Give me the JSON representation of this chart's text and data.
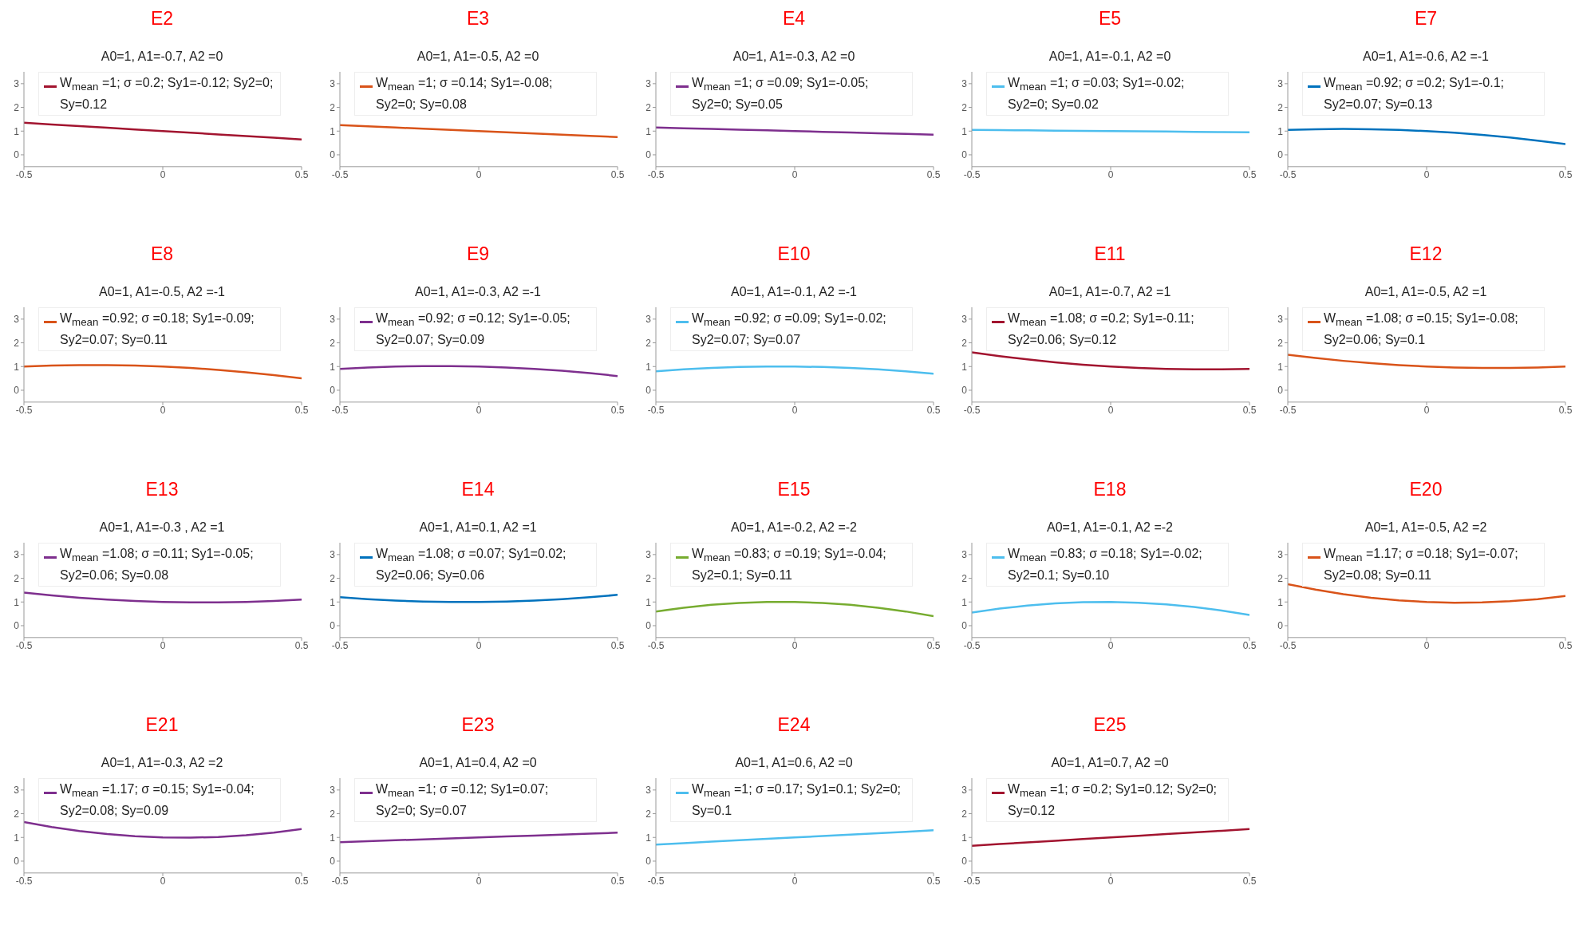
{
  "chart_data": [
    {
      "type": "line",
      "title": "E2",
      "subtitle": "A0=1, A1=-0.7, A2 =0",
      "x": [
        -0.5,
        -0.4,
        -0.3,
        -0.2,
        -0.1,
        0,
        0.1,
        0.2,
        0.3,
        0.4,
        0.5
      ],
      "xlim": [
        -0.5,
        0.5
      ],
      "xticks": [
        -0.5,
        0,
        0.5
      ],
      "ylim": [
        -0.5,
        3.5
      ],
      "yticks": [
        0,
        1,
        2,
        3
      ],
      "legend": "top",
      "series": [
        {
          "name": "W$_{mean}$ =1; σ =0.2; Sy1=-0.12; Sy2=0; Sy=0.12",
          "color": "#a2142f",
          "values": [
            1.35,
            1.28,
            1.21,
            1.14,
            1.07,
            1,
            0.93,
            0.86,
            0.79,
            0.72,
            0.65
          ]
        }
      ]
    },
    {
      "type": "line",
      "title": "E3",
      "subtitle": "A0=1, A1=-0.5, A2 =0",
      "x": [
        -0.5,
        -0.4,
        -0.3,
        -0.2,
        -0.1,
        0,
        0.1,
        0.2,
        0.3,
        0.4,
        0.5
      ],
      "xlim": [
        -0.5,
        0.5
      ],
      "xticks": [
        -0.5,
        0,
        0.5
      ],
      "ylim": [
        -0.5,
        3.5
      ],
      "yticks": [
        0,
        1,
        2,
        3
      ],
      "legend": "top",
      "series": [
        {
          "name": "W$_{mean}$ =1; σ =0.14; Sy1=-0.08; Sy2=0; Sy=0.08",
          "color": "#d95319",
          "values": [
            1.25,
            1.2,
            1.15,
            1.1,
            1.05,
            1,
            0.95,
            0.9,
            0.85,
            0.8,
            0.75
          ]
        }
      ]
    },
    {
      "type": "line",
      "title": "E4",
      "subtitle": "A0=1, A1=-0.3, A2 =0",
      "x": [
        -0.5,
        -0.4,
        -0.3,
        -0.2,
        -0.1,
        0,
        0.1,
        0.2,
        0.3,
        0.4,
        0.5
      ],
      "xlim": [
        -0.5,
        0.5
      ],
      "xticks": [
        -0.5,
        0,
        0.5
      ],
      "ylim": [
        -0.5,
        3.5
      ],
      "yticks": [
        0,
        1,
        2,
        3
      ],
      "legend": "top",
      "series": [
        {
          "name": "W$_{mean}$ =1; σ =0.09; Sy1=-0.05; Sy2=0; Sy=0.05",
          "color": "#7e2f8e",
          "values": [
            1.15,
            1.12,
            1.09,
            1.06,
            1.03,
            1,
            0.97,
            0.94,
            0.91,
            0.88,
            0.85
          ]
        }
      ]
    },
    {
      "type": "line",
      "title": "E5",
      "subtitle": "A0=1, A1=-0.1, A2 =0",
      "x": [
        -0.5,
        -0.4,
        -0.3,
        -0.2,
        -0.1,
        0,
        0.1,
        0.2,
        0.3,
        0.4,
        0.5
      ],
      "xlim": [
        -0.5,
        0.5
      ],
      "xticks": [
        -0.5,
        0,
        0.5
      ],
      "ylim": [
        -0.5,
        3.5
      ],
      "yticks": [
        0,
        1,
        2,
        3
      ],
      "legend": "top",
      "series": [
        {
          "name": "W$_{mean}$ =1; σ =0.03; Sy1=-0.02; Sy2=0; Sy=0.02",
          "color": "#4dbeee",
          "values": [
            1.05,
            1.04,
            1.03,
            1.02,
            1.01,
            1,
            0.99,
            0.98,
            0.97,
            0.96,
            0.95
          ]
        }
      ]
    },
    {
      "type": "line",
      "title": "E7",
      "subtitle": "A0=1, A1=-0.6, A2 =-1",
      "x": [
        -0.5,
        -0.4,
        -0.3,
        -0.2,
        -0.1,
        0,
        0.1,
        0.2,
        0.3,
        0.4,
        0.5
      ],
      "xlim": [
        -0.5,
        0.5
      ],
      "xticks": [
        -0.5,
        0,
        0.5
      ],
      "ylim": [
        -0.5,
        3.5
      ],
      "yticks": [
        0,
        1,
        2,
        3
      ],
      "legend": "top",
      "series": [
        {
          "name": "W$_{mean}$ =0.92; σ =0.2; Sy1=-0.1; Sy2=0.07; Sy=0.13",
          "color": "#0072bd",
          "values": [
            1.05,
            1.08,
            1.09,
            1.08,
            1.05,
            1,
            0.93,
            0.84,
            0.73,
            0.6,
            0.45
          ]
        }
      ]
    },
    {
      "type": "line",
      "title": "E8",
      "subtitle": "A0=1, A1=-0.5, A2 =-1",
      "x": [
        -0.5,
        -0.4,
        -0.3,
        -0.2,
        -0.1,
        0,
        0.1,
        0.2,
        0.3,
        0.4,
        0.5
      ],
      "xlim": [
        -0.5,
        0.5
      ],
      "xticks": [
        -0.5,
        0,
        0.5
      ],
      "ylim": [
        -0.5,
        3.5
      ],
      "yticks": [
        0,
        1,
        2,
        3
      ],
      "legend": "top",
      "series": [
        {
          "name": "W$_{mean}$ =0.92; σ =0.18; Sy1=-0.09; Sy2=0.07; Sy=0.11",
          "color": "#d95319",
          "values": [
            1,
            1.04,
            1.06,
            1.06,
            1.04,
            1,
            0.94,
            0.86,
            0.76,
            0.64,
            0.5
          ]
        }
      ]
    },
    {
      "type": "line",
      "title": "E9",
      "subtitle": "A0=1, A1=-0.3, A2 =-1",
      "x": [
        -0.5,
        -0.4,
        -0.3,
        -0.2,
        -0.1,
        0,
        0.1,
        0.2,
        0.3,
        0.4,
        0.5
      ],
      "xlim": [
        -0.5,
        0.5
      ],
      "xticks": [
        -0.5,
        0,
        0.5
      ],
      "ylim": [
        -0.5,
        3.5
      ],
      "yticks": [
        0,
        1,
        2,
        3
      ],
      "legend": "top",
      "series": [
        {
          "name": "W$_{mean}$ =0.92; σ =0.12; Sy1=-0.05; Sy2=0.07; Sy=0.09",
          "color": "#7e2f8e",
          "values": [
            0.9,
            0.96,
            1,
            1.02,
            1.02,
            1,
            0.96,
            0.9,
            0.82,
            0.72,
            0.6
          ]
        }
      ]
    },
    {
      "type": "line",
      "title": "E10",
      "subtitle": "A0=1, A1=-0.1, A2 =-1",
      "x": [
        -0.5,
        -0.4,
        -0.3,
        -0.2,
        -0.1,
        0,
        0.1,
        0.2,
        0.3,
        0.4,
        0.5
      ],
      "xlim": [
        -0.5,
        0.5
      ],
      "xticks": [
        -0.5,
        0,
        0.5
      ],
      "ylim": [
        -0.5,
        3.5
      ],
      "yticks": [
        0,
        1,
        2,
        3
      ],
      "legend": "top",
      "series": [
        {
          "name": "W$_{mean}$ =0.92; σ =0.09; Sy1=-0.02; Sy2=0.07; Sy=0.07",
          "color": "#4dbeee",
          "values": [
            0.8,
            0.88,
            0.94,
            0.98,
            1,
            1,
            0.98,
            0.94,
            0.88,
            0.8,
            0.7
          ]
        }
      ]
    },
    {
      "type": "line",
      "title": "E11",
      "subtitle": "A0=1, A1=-0.7, A2 =1",
      "x": [
        -0.5,
        -0.4,
        -0.3,
        -0.2,
        -0.1,
        0,
        0.1,
        0.2,
        0.3,
        0.4,
        0.5
      ],
      "xlim": [
        -0.5,
        0.5
      ],
      "xticks": [
        -0.5,
        0,
        0.5
      ],
      "ylim": [
        -0.5,
        3.5
      ],
      "yticks": [
        0,
        1,
        2,
        3
      ],
      "legend": "top",
      "series": [
        {
          "name": "W$_{mean}$ =1.08; σ =0.2; Sy1=-0.11; Sy2=0.06; Sy=0.12",
          "color": "#a2142f",
          "values": [
            1.6,
            1.44,
            1.3,
            1.18,
            1.08,
            1,
            0.94,
            0.9,
            0.88,
            0.88,
            0.9
          ]
        }
      ]
    },
    {
      "type": "line",
      "title": "E12",
      "subtitle": "A0=1, A1=-0.5, A2 =1",
      "x": [
        -0.5,
        -0.4,
        -0.3,
        -0.2,
        -0.1,
        0,
        0.1,
        0.2,
        0.3,
        0.4,
        0.5
      ],
      "xlim": [
        -0.5,
        0.5
      ],
      "xticks": [
        -0.5,
        0,
        0.5
      ],
      "ylim": [
        -0.5,
        3.5
      ],
      "yticks": [
        0,
        1,
        2,
        3
      ],
      "legend": "top",
      "series": [
        {
          "name": "W$_{mean}$ =1.08; σ =0.15; Sy1=-0.08; Sy2=0.06; Sy=0.1",
          "color": "#d95319",
          "values": [
            1.5,
            1.36,
            1.24,
            1.14,
            1.06,
            1,
            0.96,
            0.94,
            0.94,
            0.96,
            1
          ]
        }
      ]
    },
    {
      "type": "line",
      "title": "E13",
      "subtitle": "A0=1, A1=-0.3 , A2 =1",
      "x": [
        -0.5,
        -0.4,
        -0.3,
        -0.2,
        -0.1,
        0,
        0.1,
        0.2,
        0.3,
        0.4,
        0.5
      ],
      "xlim": [
        -0.5,
        0.5
      ],
      "xticks": [
        -0.5,
        0,
        0.5
      ],
      "ylim": [
        -0.5,
        3.5
      ],
      "yticks": [
        0,
        1,
        2,
        3
      ],
      "legend": "top",
      "series": [
        {
          "name": "W$_{mean}$ =1.08; σ =0.11; Sy1=-0.05; Sy2=0.06; Sy=0.08",
          "color": "#7e2f8e",
          "values": [
            1.4,
            1.28,
            1.18,
            1.1,
            1.04,
            1,
            0.98,
            0.98,
            1,
            1.04,
            1.1
          ]
        }
      ]
    },
    {
      "type": "line",
      "title": "E14",
      "subtitle": "A0=1, A1=0.1, A2 =1",
      "x": [
        -0.5,
        -0.4,
        -0.3,
        -0.2,
        -0.1,
        0,
        0.1,
        0.2,
        0.3,
        0.4,
        0.5
      ],
      "xlim": [
        -0.5,
        0.5
      ],
      "xticks": [
        -0.5,
        0,
        0.5
      ],
      "ylim": [
        -0.5,
        3.5
      ],
      "yticks": [
        0,
        1,
        2,
        3
      ],
      "legend": "top",
      "series": [
        {
          "name": "W$_{mean}$ =1.08; σ =0.07; Sy1=0.02; Sy2=0.06; Sy=0.06",
          "color": "#0072bd",
          "values": [
            1.2,
            1.12,
            1.06,
            1.02,
            1,
            1,
            1.02,
            1.06,
            1.12,
            1.2,
            1.3
          ]
        }
      ]
    },
    {
      "type": "line",
      "title": "E15",
      "subtitle": "A0=1, A1=-0.2, A2 =-2",
      "x": [
        -0.5,
        -0.4,
        -0.3,
        -0.2,
        -0.1,
        0,
        0.1,
        0.2,
        0.3,
        0.4,
        0.5
      ],
      "xlim": [
        -0.5,
        0.5
      ],
      "xticks": [
        -0.5,
        0,
        0.5
      ],
      "ylim": [
        -0.5,
        3.5
      ],
      "yticks": [
        0,
        1,
        2,
        3
      ],
      "legend": "top",
      "series": [
        {
          "name": "W$_{mean}$ =0.83; σ =0.19; Sy1=-0.04; Sy2=0.1; Sy=0.11",
          "color": "#77ac30",
          "values": [
            0.6,
            0.76,
            0.88,
            0.96,
            1,
            1,
            0.96,
            0.88,
            0.76,
            0.6,
            0.4
          ]
        }
      ]
    },
    {
      "type": "line",
      "title": "E18",
      "subtitle": "A0=1, A1=-0.1, A2 =-2",
      "x": [
        -0.5,
        -0.4,
        -0.3,
        -0.2,
        -0.1,
        0,
        0.1,
        0.2,
        0.3,
        0.4,
        0.5
      ],
      "xlim": [
        -0.5,
        0.5
      ],
      "xticks": [
        -0.5,
        0,
        0.5
      ],
      "ylim": [
        -0.5,
        3.5
      ],
      "yticks": [
        0,
        1,
        2,
        3
      ],
      "legend": "top",
      "series": [
        {
          "name": "W$_{mean}$ =0.83; σ =0.18; Sy1=-0.02; Sy2=0.1; Sy=0.10",
          "color": "#4dbeee",
          "values": [
            0.55,
            0.72,
            0.85,
            0.94,
            0.99,
            1,
            0.97,
            0.9,
            0.79,
            0.64,
            0.45
          ]
        }
      ]
    },
    {
      "type": "line",
      "title": "E20",
      "subtitle": "A0=1, A1=-0.5, A2 =2",
      "x": [
        -0.5,
        -0.4,
        -0.3,
        -0.2,
        -0.1,
        0,
        0.1,
        0.2,
        0.3,
        0.4,
        0.5
      ],
      "xlim": [
        -0.5,
        0.5
      ],
      "xticks": [
        -0.5,
        0,
        0.5
      ],
      "ylim": [
        -0.5,
        3.5
      ],
      "yticks": [
        0,
        1,
        2,
        3
      ],
      "legend": "top",
      "series": [
        {
          "name": "W$_{mean}$ =1.17; σ =0.18; Sy1=-0.07; Sy2=0.08; Sy=0.11",
          "color": "#d95319",
          "values": [
            1.75,
            1.52,
            1.33,
            1.18,
            1.07,
            1,
            0.97,
            0.98,
            1.03,
            1.12,
            1.25
          ]
        }
      ]
    },
    {
      "type": "line",
      "title": "E21",
      "subtitle": "A0=1, A1=-0.3, A2 =2",
      "x": [
        -0.5,
        -0.4,
        -0.3,
        -0.2,
        -0.1,
        0,
        0.1,
        0.2,
        0.3,
        0.4,
        0.5
      ],
      "xlim": [
        -0.5,
        0.5
      ],
      "xticks": [
        -0.5,
        0,
        0.5
      ],
      "ylim": [
        -0.5,
        3.5
      ],
      "yticks": [
        0,
        1,
        2,
        3
      ],
      "legend": "top",
      "series": [
        {
          "name": "W$_{mean}$ =1.17; σ =0.15; Sy1=-0.04; Sy2=0.08; Sy=0.09",
          "color": "#7e2f8e",
          "values": [
            1.65,
            1.44,
            1.27,
            1.14,
            1.05,
            1,
            0.99,
            1.02,
            1.09,
            1.2,
            1.35
          ]
        }
      ]
    },
    {
      "type": "line",
      "title": "E23",
      "subtitle": "A0=1, A1=0.4, A2 =0",
      "x": [
        -0.5,
        -0.4,
        -0.3,
        -0.2,
        -0.1,
        0,
        0.1,
        0.2,
        0.3,
        0.4,
        0.5
      ],
      "xlim": [
        -0.5,
        0.5
      ],
      "xticks": [
        -0.5,
        0,
        0.5
      ],
      "ylim": [
        -0.5,
        3.5
      ],
      "yticks": [
        0,
        1,
        2,
        3
      ],
      "legend": "top",
      "series": [
        {
          "name": "W$_{mean}$ =1; σ =0.12; Sy1=0.07; Sy2=0; Sy=0.07",
          "color": "#7e2f8e",
          "values": [
            0.8,
            0.84,
            0.88,
            0.92,
            0.96,
            1,
            1.04,
            1.08,
            1.12,
            1.16,
            1.2
          ]
        }
      ]
    },
    {
      "type": "line",
      "title": "E24",
      "subtitle": "A0=1, A1=0.6, A2 =0",
      "x": [
        -0.5,
        -0.4,
        -0.3,
        -0.2,
        -0.1,
        0,
        0.1,
        0.2,
        0.3,
        0.4,
        0.5
      ],
      "xlim": [
        -0.5,
        0.5
      ],
      "xticks": [
        -0.5,
        0,
        0.5
      ],
      "ylim": [
        -0.5,
        3.5
      ],
      "yticks": [
        0,
        1,
        2,
        3
      ],
      "legend": "top",
      "series": [
        {
          "name": "W$_{mean}$ =1; σ =0.17; Sy1=0.1; Sy2=0; Sy=0.1",
          "color": "#4dbeee",
          "values": [
            0.7,
            0.76,
            0.82,
            0.88,
            0.94,
            1,
            1.06,
            1.12,
            1.18,
            1.24,
            1.3
          ]
        }
      ]
    },
    {
      "type": "line",
      "title": "E25",
      "subtitle": "A0=1, A1=0.7, A2 =0",
      "x": [
        -0.5,
        -0.4,
        -0.3,
        -0.2,
        -0.1,
        0,
        0.1,
        0.2,
        0.3,
        0.4,
        0.5
      ],
      "xlim": [
        -0.5,
        0.5
      ],
      "xticks": [
        -0.5,
        0,
        0.5
      ],
      "ylim": [
        -0.5,
        3.5
      ],
      "yticks": [
        0,
        1,
        2,
        3
      ],
      "legend": "top",
      "series": [
        {
          "name": "W$_{mean}$ =1; σ =0.2; Sy1=0.12; Sy2=0; Sy=0.12",
          "color": "#a2142f",
          "values": [
            0.65,
            0.72,
            0.79,
            0.86,
            0.93,
            1,
            1.07,
            1.14,
            1.21,
            1.28,
            1.35
          ]
        }
      ]
    }
  ]
}
